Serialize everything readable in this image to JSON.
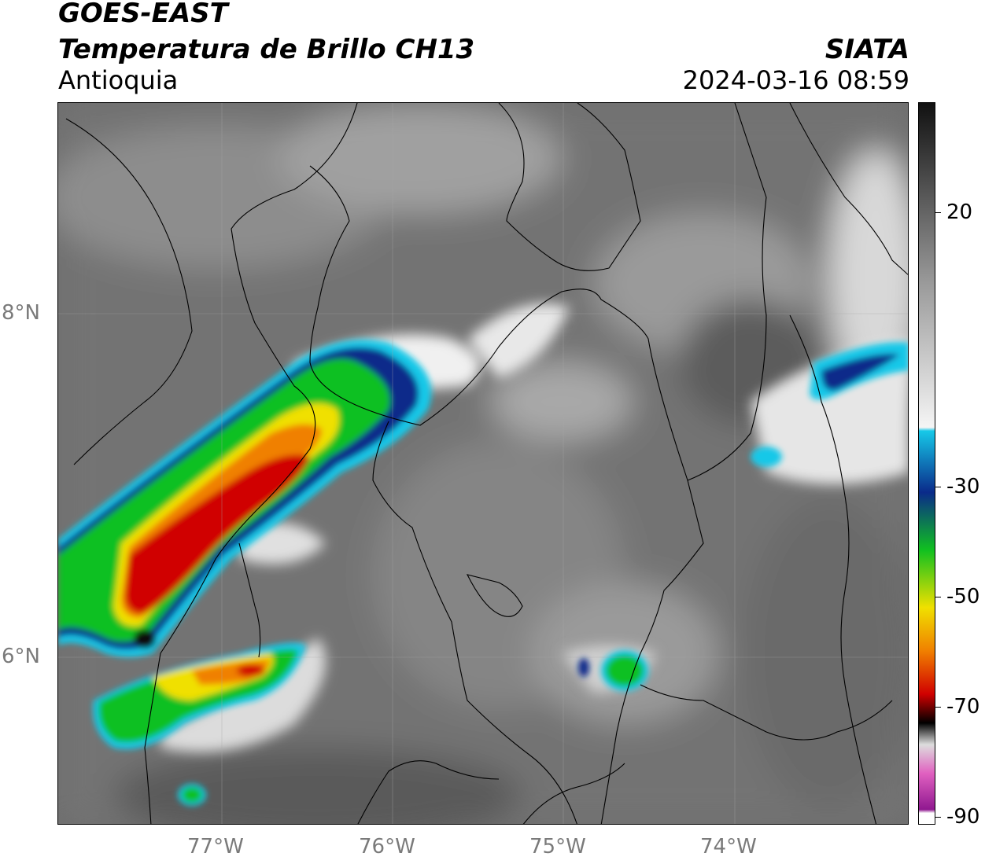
{
  "header": {
    "satellite": "GOES-EAST",
    "product": "Temperatura de Brillo CH13",
    "region": "Antioquia",
    "agency": "SIATA",
    "timestamp": "2024-03-16 08:59"
  },
  "axes": {
    "longitude_ticks": [
      "77°W",
      "76°W",
      "75°W",
      "74°W"
    ],
    "latitude_ticks": [
      "8°N",
      "6°N"
    ]
  },
  "colorbar": {
    "ticks": [
      "20",
      "-30",
      "-50",
      "-70",
      "-90"
    ],
    "colors": {
      "warm_dark": "#111111",
      "gray": "#9a9a9a",
      "white": "#f5f5f5",
      "cyan": "#16c8e8",
      "blue": "#0a2a8a",
      "green": "#10c020",
      "yellow": "#f0e000",
      "orange": "#f08000",
      "red": "#d00000",
      "black": "#000000",
      "pink": "#e060c0",
      "purple": "#901890"
    }
  }
}
